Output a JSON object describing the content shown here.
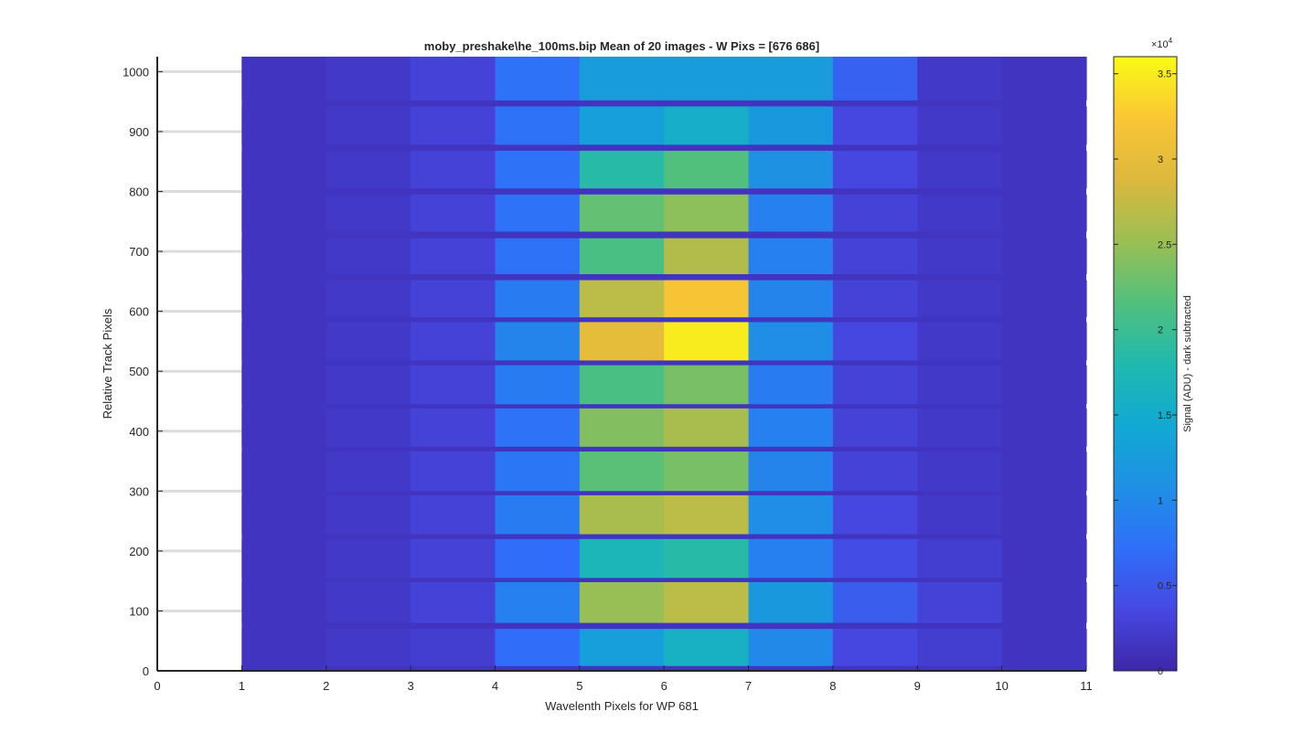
{
  "chart_data": {
    "type": "heatmap",
    "title": "moby_preshake\\he_100ms.bip  Mean of 20 images - W Pixs = [676  686]",
    "xlabel": "Wavelenth Pixels for WP 681",
    "ylabel": "Relative Track Pixels",
    "xlim": [
      0,
      11
    ],
    "ylim": [
      0,
      1025
    ],
    "x_ticks": [
      0,
      1,
      2,
      3,
      4,
      5,
      6,
      7,
      8,
      9,
      10,
      11
    ],
    "y_ticks": [
      0,
      100,
      200,
      300,
      400,
      500,
      600,
      700,
      800,
      900,
      1000
    ],
    "grid": "horizontal gridlines at y ticks",
    "colormap": "parula",
    "colorbar": {
      "label": "Signal (ADU) - dark subtracted",
      "exponent_label": "×10",
      "exponent_power": "4",
      "range": [
        0,
        36000
      ],
      "ticks": [
        0,
        0.5,
        1,
        1.5,
        2,
        2.5,
        3,
        3.5
      ],
      "tick_labels": [
        "0",
        "0.5",
        "1",
        "1.5",
        "2",
        "2.5",
        "3",
        "3.5"
      ],
      "scale": 10000,
      "position": "right"
    },
    "columns": [
      {
        "x_start": 1,
        "x_end": 2
      },
      {
        "x_start": 2,
        "x_end": 3
      },
      {
        "x_start": 3,
        "x_end": 4
      },
      {
        "x_start": 4,
        "x_end": 5
      },
      {
        "x_start": 5,
        "x_end": 6
      },
      {
        "x_start": 6,
        "x_end": 7
      },
      {
        "x_start": 7,
        "x_end": 8
      },
      {
        "x_start": 8,
        "x_end": 9
      },
      {
        "x_start": 9,
        "x_end": 10
      },
      {
        "x_start": 10,
        "x_end": 11
      }
    ],
    "background_signal": 1500,
    "tracks": [
      {
        "y_start": 8,
        "y_end": 70,
        "values": [
          1500,
          2000,
          2500,
          7000,
          13000,
          16000,
          10000,
          3500,
          2500,
          1500
        ]
      },
      {
        "y_start": 80,
        "y_end": 148,
        "values": [
          1500,
          2000,
          3000,
          9000,
          25000,
          27000,
          12000,
          5500,
          3000,
          1500
        ]
      },
      {
        "y_start": 155,
        "y_end": 220,
        "values": [
          1500,
          2000,
          3000,
          7000,
          17000,
          18500,
          9000,
          4000,
          2500,
          1500
        ]
      },
      {
        "y_start": 228,
        "y_end": 293,
        "values": [
          1500,
          2000,
          3000,
          8500,
          26000,
          27000,
          10500,
          3500,
          2000,
          1500
        ]
      },
      {
        "y_start": 300,
        "y_end": 366,
        "values": [
          1500,
          2000,
          3000,
          8000,
          22000,
          23500,
          9500,
          3000,
          2000,
          1500
        ]
      },
      {
        "y_start": 374,
        "y_end": 438,
        "values": [
          1500,
          2000,
          3000,
          7500,
          24000,
          26000,
          9000,
          3000,
          2000,
          1500
        ]
      },
      {
        "y_start": 445,
        "y_end": 510,
        "values": [
          1500,
          2000,
          3000,
          8500,
          21000,
          23500,
          8500,
          3000,
          2000,
          1500
        ]
      },
      {
        "y_start": 518,
        "y_end": 582,
        "values": [
          1500,
          2000,
          3000,
          9500,
          30000,
          35000,
          10500,
          3500,
          2000,
          1500
        ]
      },
      {
        "y_start": 590,
        "y_end": 652,
        "values": [
          1500,
          2000,
          3000,
          8500,
          27000,
          32000,
          9500,
          3000,
          2000,
          1500
        ]
      },
      {
        "y_start": 662,
        "y_end": 722,
        "values": [
          1500,
          2000,
          3000,
          7500,
          21000,
          26500,
          9000,
          3000,
          2000,
          1500
        ]
      },
      {
        "y_start": 733,
        "y_end": 795,
        "values": [
          1500,
          2000,
          3000,
          7500,
          22500,
          24500,
          9000,
          3000,
          2000,
          1500
        ]
      },
      {
        "y_start": 805,
        "y_end": 868,
        "values": [
          1500,
          2000,
          3000,
          7500,
          18500,
          21500,
          11000,
          3500,
          2000,
          1500
        ]
      },
      {
        "y_start": 878,
        "y_end": 942,
        "values": [
          1500,
          2000,
          3000,
          7500,
          13000,
          15500,
          12000,
          3500,
          2000,
          1500
        ]
      },
      {
        "y_start": 952,
        "y_end": 1025,
        "values": [
          1500,
          2000,
          3000,
          7500,
          12500,
          12500,
          12500,
          6000,
          2000,
          1500
        ]
      }
    ]
  }
}
